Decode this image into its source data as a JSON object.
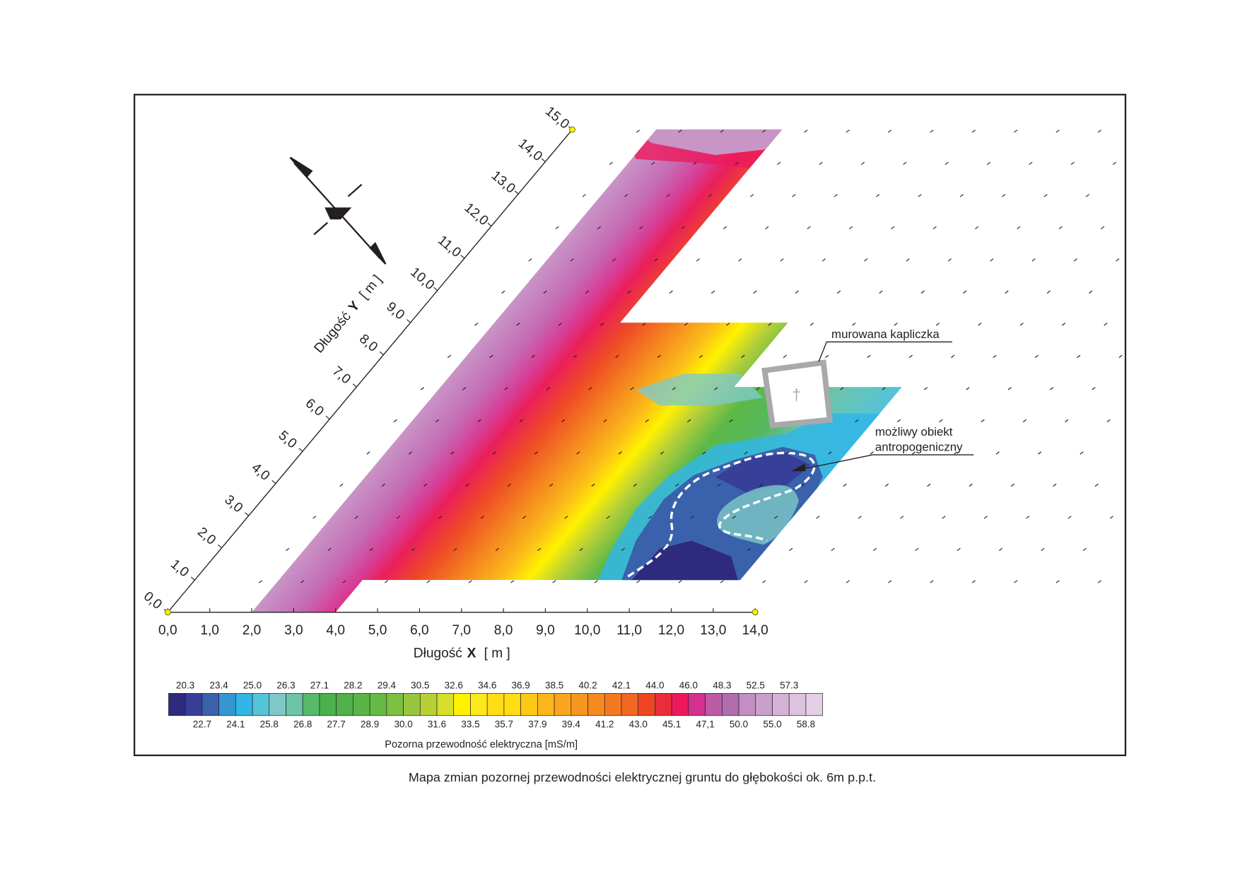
{
  "map": {
    "x_ticks": [
      "0,0",
      "1,0",
      "2,0",
      "3,0",
      "4,0",
      "5,0",
      "6,0",
      "7,0",
      "8,0",
      "9,0",
      "10,0",
      "11,0",
      "12,0",
      "13,0",
      "14,0"
    ],
    "y_ticks": [
      "0,0",
      "1,0",
      "2,0",
      "3,0",
      "4,0",
      "5,0",
      "6,0",
      "7,0",
      "8,0",
      "9,0",
      "10,0",
      "11,0",
      "12,0",
      "13,0",
      "14,0",
      "15,0"
    ],
    "x_axis_title": {
      "name": "Długość",
      "variable": "X",
      "unit": "[ m ]"
    },
    "y_axis_title": {
      "name": "Długość",
      "variable": "Y",
      "unit": "[ m ]"
    },
    "annotations": {
      "chapel": "murowana kapliczka",
      "object": [
        "możliwy obiekt",
        "antropogeniczny"
      ]
    },
    "legend": {
      "title": "Pozorna przewodność elektryczna [mS/m]",
      "upper_labels": [
        "20.3",
        "23.4",
        "25.0",
        "26.3",
        "27.1",
        "28.2",
        "29.4",
        "30.5",
        "32.6",
        "34.6",
        "36.9",
        "38.5",
        "40.2",
        "42.1",
        "44.0",
        "46.0",
        "48.3",
        "52.5",
        "57.3"
      ],
      "lower_labels": [
        "22.7",
        "24.1",
        "25.8",
        "26.8",
        "27.7",
        "28.9",
        "30.0",
        "31.6",
        "33.5",
        "35.7",
        "37.9",
        "39.4",
        "41.2",
        "43.0",
        "45.1",
        "47,1",
        "50.0",
        "55.0",
        "58.8"
      ],
      "colors": [
        "#2e2a7e",
        "#373f98",
        "#3a61ac",
        "#3596d3",
        "#31b6e6",
        "#55c3d8",
        "#7ec9c8",
        "#6cc4a8",
        "#58b96a",
        "#4cb04c",
        "#52b04a",
        "#5ab548",
        "#66b946",
        "#7ebf44",
        "#98c640",
        "#b8d038",
        "#d6df2c",
        "#fff200",
        "#fce81c",
        "#ffdc14",
        "#fdc917",
        "#fbb61b",
        "#f9a51e",
        "#f7961e",
        "#f58a1f",
        "#f47a22",
        "#f26724",
        "#ee4623",
        "#ea2d3a",
        "#ec1a5c",
        "#d4318f",
        "#bc5aa6",
        "#b06db0",
        "#c38fc3",
        "#c9a0cc",
        "#d4b3d6",
        "#dcc3de",
        "#e4d0e4"
      ]
    },
    "caption": "Mapa zmian pozornej przewodności elektrycznej gruntu do głębokości ok. 6m p.p.t."
  }
}
